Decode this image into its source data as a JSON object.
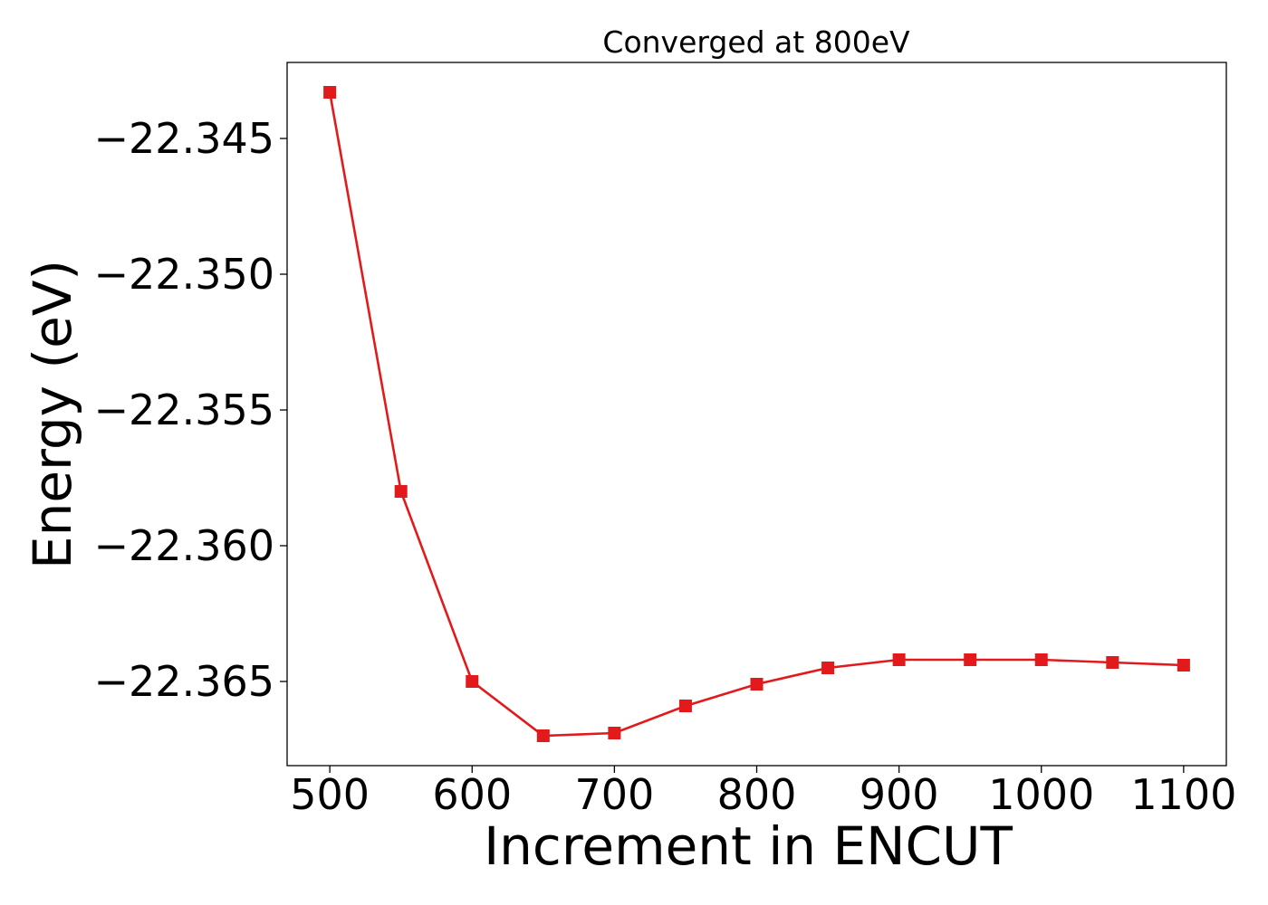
{
  "chart_data": {
    "type": "line",
    "title": "Converged at 800eV",
    "xlabel": "Increment in ENCUT",
    "ylabel": "Energy (eV)",
    "xlim": [
      470,
      1130
    ],
    "ylim": [
      -22.3681,
      -22.3422
    ],
    "xticks": [
      500,
      600,
      700,
      800,
      900,
      1000,
      1100
    ],
    "xtick_labels": [
      "500",
      "600",
      "700",
      "800",
      "900",
      "1000",
      "1100"
    ],
    "yticks": [
      -22.345,
      -22.35,
      -22.355,
      -22.36,
      -22.365
    ],
    "ytick_labels": [
      "−22.345",
      "−22.350",
      "−22.355",
      "−22.360",
      "−22.365"
    ],
    "grid": false,
    "series": [
      {
        "color": "#e31a1c",
        "marker": "square",
        "x": [
          500,
          550,
          600,
          650,
          700,
          750,
          800,
          850,
          900,
          950,
          1000,
          1050,
          1100
        ],
        "y": [
          -22.3433,
          -22.358,
          -22.365,
          -22.367,
          -22.3669,
          -22.3659,
          -22.3651,
          -22.3645,
          -22.3642,
          -22.3642,
          -22.3642,
          -22.3643,
          -22.3644
        ]
      }
    ]
  }
}
